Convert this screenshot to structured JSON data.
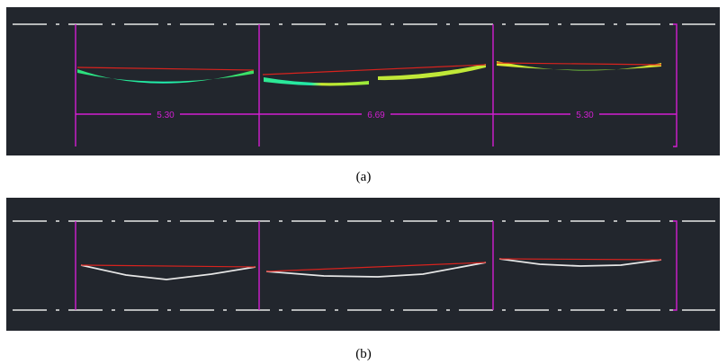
{
  "panel_a": {
    "dimensions": [
      "5.30",
      "6.69",
      "5.30"
    ],
    "caption": "(a)"
  },
  "panel_b": {
    "caption": "(b)"
  }
}
